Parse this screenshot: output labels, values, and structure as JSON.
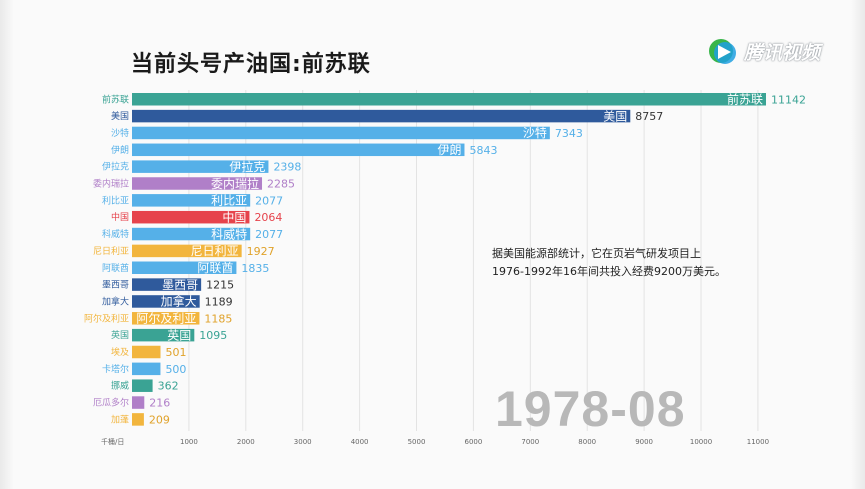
{
  "title": "当前头号产油国:前苏联",
  "logo": {
    "text": "腾讯视频",
    "icon": "play-icon"
  },
  "annotation": "据美国能源部统计，它在页岩气研发项目上1976-1992年16年间共投入经费9200万美元。",
  "date": "1978-08",
  "chart_data": {
    "type": "bar",
    "orientation": "horizontal",
    "unit_label": "千桶/日",
    "xlim": [
      0,
      11142
    ],
    "x_ticks": [
      "1000",
      "2000",
      "3000",
      "4000",
      "5000",
      "6000",
      "7000",
      "8000",
      "9000",
      "10000",
      "11000"
    ],
    "grid": true,
    "bars": [
      {
        "name": "前苏联",
        "value": 11142,
        "color": "#3aa394",
        "label_color": "#3aa394",
        "inside": true
      },
      {
        "name": "美国",
        "value": 8757,
        "color": "#2f5a9c",
        "label_color": "#2f5a9c",
        "inside": true
      },
      {
        "name": "沙特",
        "value": 7343,
        "color": "#55b0e8",
        "label_color": "#55b0e8",
        "inside": true
      },
      {
        "name": "伊朗",
        "value": 5843,
        "color": "#55b0e8",
        "label_color": "#55b0e8",
        "inside": true
      },
      {
        "name": "伊拉克",
        "value": 2398,
        "color": "#55b0e8",
        "label_color": "#55b0e8",
        "inside": true
      },
      {
        "name": "委内瑞拉",
        "value": 2285,
        "color": "#b07fc8",
        "label_color": "#b07fc8",
        "inside": true
      },
      {
        "name": "利比亚",
        "value": 2077,
        "color": "#55b0e8",
        "label_color": "#55b0e8",
        "inside": true
      },
      {
        "name": "中国",
        "value": 2064,
        "color": "#e6434c",
        "label_color": "#e6434c",
        "inside": true
      },
      {
        "name": "科威特",
        "value": 2077,
        "color": "#55b0e8",
        "label_color": "#55b0e8",
        "inside": true
      },
      {
        "name": "尼日利亚",
        "value": 1927,
        "color": "#f2b53d",
        "label_color": "#f2b53d",
        "inside": true
      },
      {
        "name": "阿联酋",
        "value": 1835,
        "color": "#55b0e8",
        "label_color": "#55b0e8",
        "inside": true
      },
      {
        "name": "墨西哥",
        "value": 1215,
        "color": "#2f5a9c",
        "label_color": "#2f5a9c",
        "inside": true
      },
      {
        "name": "加拿大",
        "value": 1189,
        "color": "#2f5a9c",
        "label_color": "#2f5a9c",
        "inside": true
      },
      {
        "name": "阿尔及利亚",
        "value": 1185,
        "color": "#f2b53d",
        "label_color": "#f2b53d",
        "inside": true
      },
      {
        "name": "英国",
        "value": 1095,
        "color": "#3aa394",
        "label_color": "#3aa394",
        "inside": true
      },
      {
        "name": "埃及",
        "value": 501,
        "color": "#f2b53d",
        "label_color": "#f2b53d",
        "inside": false
      },
      {
        "name": "卡塔尔",
        "value": 500,
        "color": "#55b0e8",
        "label_color": "#55b0e8",
        "inside": false
      },
      {
        "name": "挪威",
        "value": 362,
        "color": "#3aa394",
        "label_color": "#3aa394",
        "inside": false
      },
      {
        "name": "厄瓜多尔",
        "value": 216,
        "color": "#b07fc8",
        "label_color": "#b07fc8",
        "inside": false
      },
      {
        "name": "加蓬",
        "value": 209,
        "color": "#f2b53d",
        "label_color": "#f2b53d",
        "inside": false
      }
    ]
  }
}
